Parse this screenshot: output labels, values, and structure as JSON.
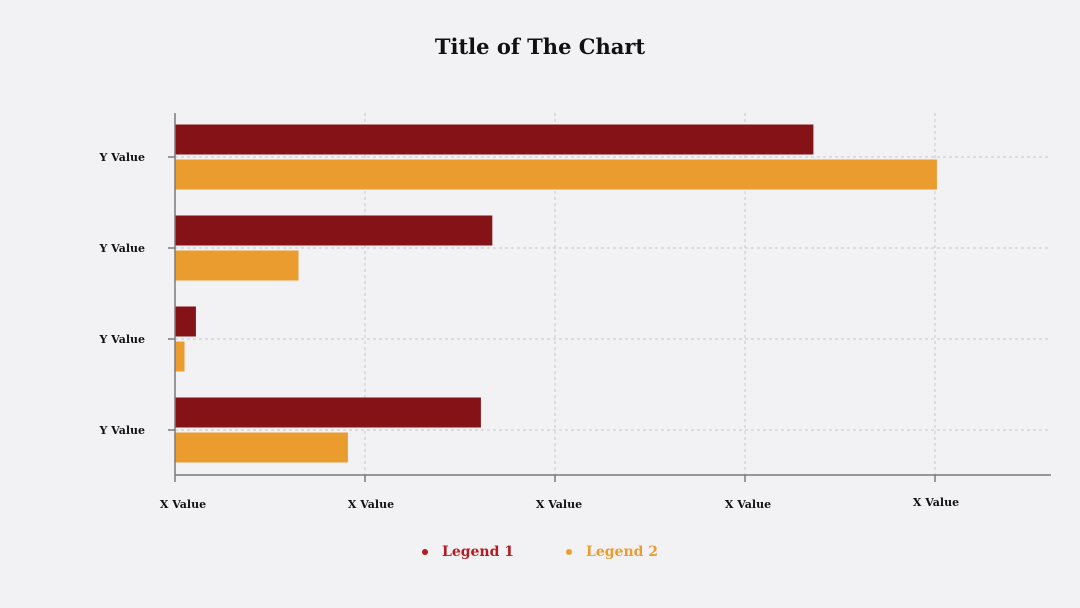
{
  "chart_data": {
    "type": "bar",
    "orientation": "horizontal",
    "title": "Title of The Chart",
    "categories": [
      "Y Value",
      "Y Value",
      "Y Value",
      "Y Value"
    ],
    "x_tick_labels": [
      "X Value",
      "X Value",
      "X Value",
      "X Value",
      "X Value"
    ],
    "xlim": [
      0,
      4.6
    ],
    "grid": true,
    "legend_placement": "bottom",
    "series": [
      {
        "name": "Legend 1",
        "color": "#841216",
        "values": [
          3.36,
          1.67,
          0.11,
          1.61
        ]
      },
      {
        "name": "Legend 2",
        "color": "#eb9c2e",
        "values": [
          4.01,
          0.65,
          0.05,
          0.91
        ]
      }
    ]
  },
  "legend": {
    "items": [
      {
        "label": "Legend 1",
        "color": "#b51b1f"
      },
      {
        "label": "Legend 2",
        "color": "#eb9c2e"
      }
    ]
  }
}
